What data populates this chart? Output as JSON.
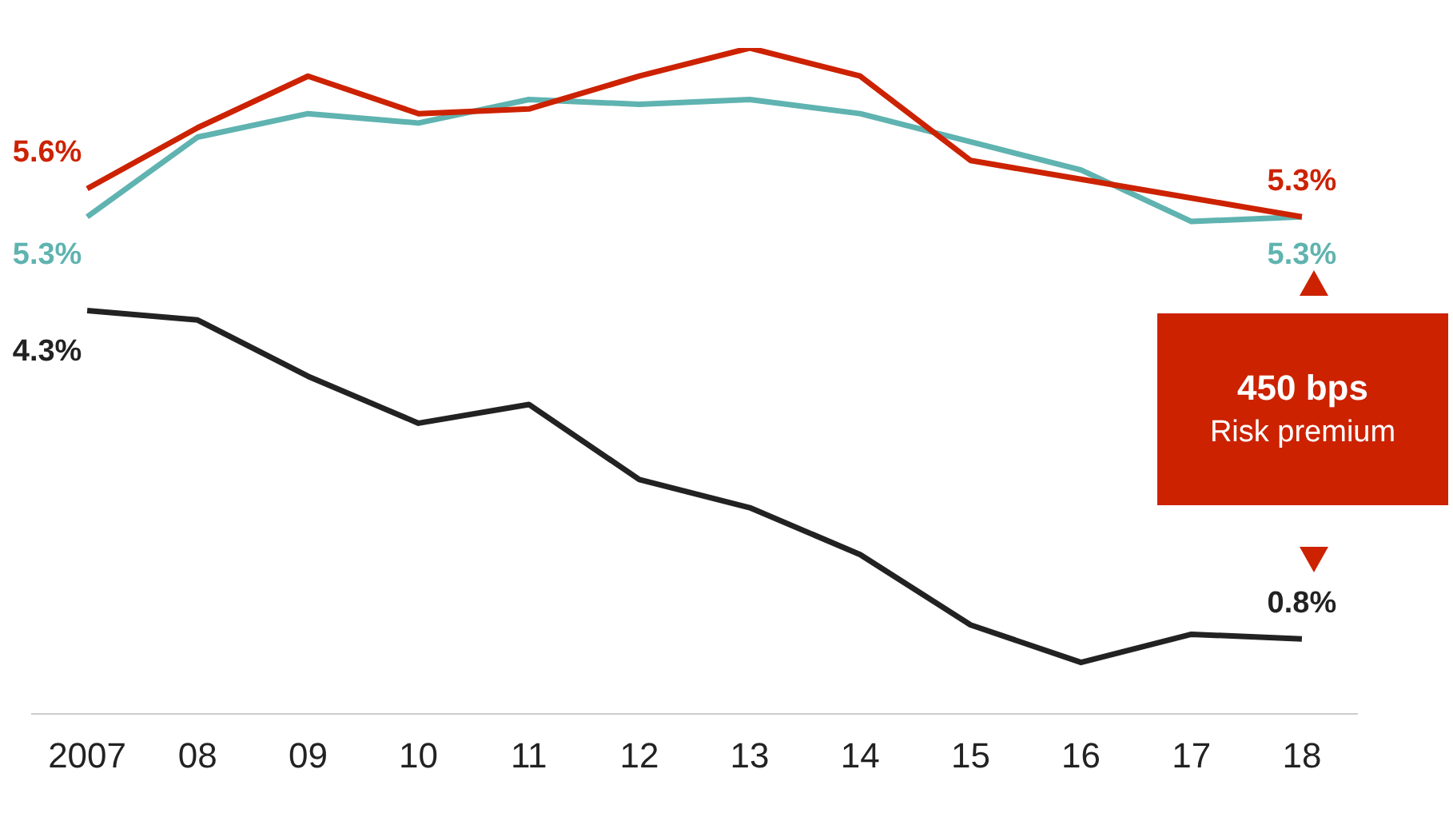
{
  "chart_data": {
    "type": "line",
    "categories": [
      "2007",
      "08",
      "09",
      "10",
      "11",
      "12",
      "13",
      "14",
      "15",
      "16",
      "17",
      "18"
    ],
    "series": [
      {
        "color": "#cc2200",
        "values": [
          5.6,
          6.25,
          6.8,
          6.4,
          6.45,
          6.8,
          7.1,
          6.8,
          5.9,
          5.7,
          5.5,
          5.3
        ],
        "value_labels": [
          "5.6%",
          null,
          null,
          null,
          null,
          null,
          null,
          null,
          null,
          null,
          null,
          "5.3%"
        ]
      },
      {
        "color": "#5fb3b0",
        "values": [
          5.3,
          6.15,
          6.4,
          6.3,
          6.55,
          6.5,
          6.55,
          6.4,
          6.1,
          5.8,
          5.25,
          5.3
        ],
        "value_labels": [
          "5.3%",
          null,
          null,
          null,
          null,
          null,
          null,
          null,
          null,
          null,
          null,
          "5.3%"
        ]
      },
      {
        "color": "#222222",
        "values": [
          4.3,
          4.2,
          3.6,
          3.1,
          3.3,
          2.5,
          2.2,
          1.7,
          0.95,
          0.55,
          0.85,
          0.8
        ],
        "value_labels": [
          "4.3%",
          null,
          null,
          null,
          null,
          null,
          null,
          null,
          null,
          null,
          null,
          "0.8%"
        ]
      }
    ],
    "annotations": [
      "450 bps",
      "Risk premium"
    ],
    "grid": false,
    "legend": false,
    "marker": "none",
    "line_style": "solid",
    "tick_labels": "x"
  }
}
